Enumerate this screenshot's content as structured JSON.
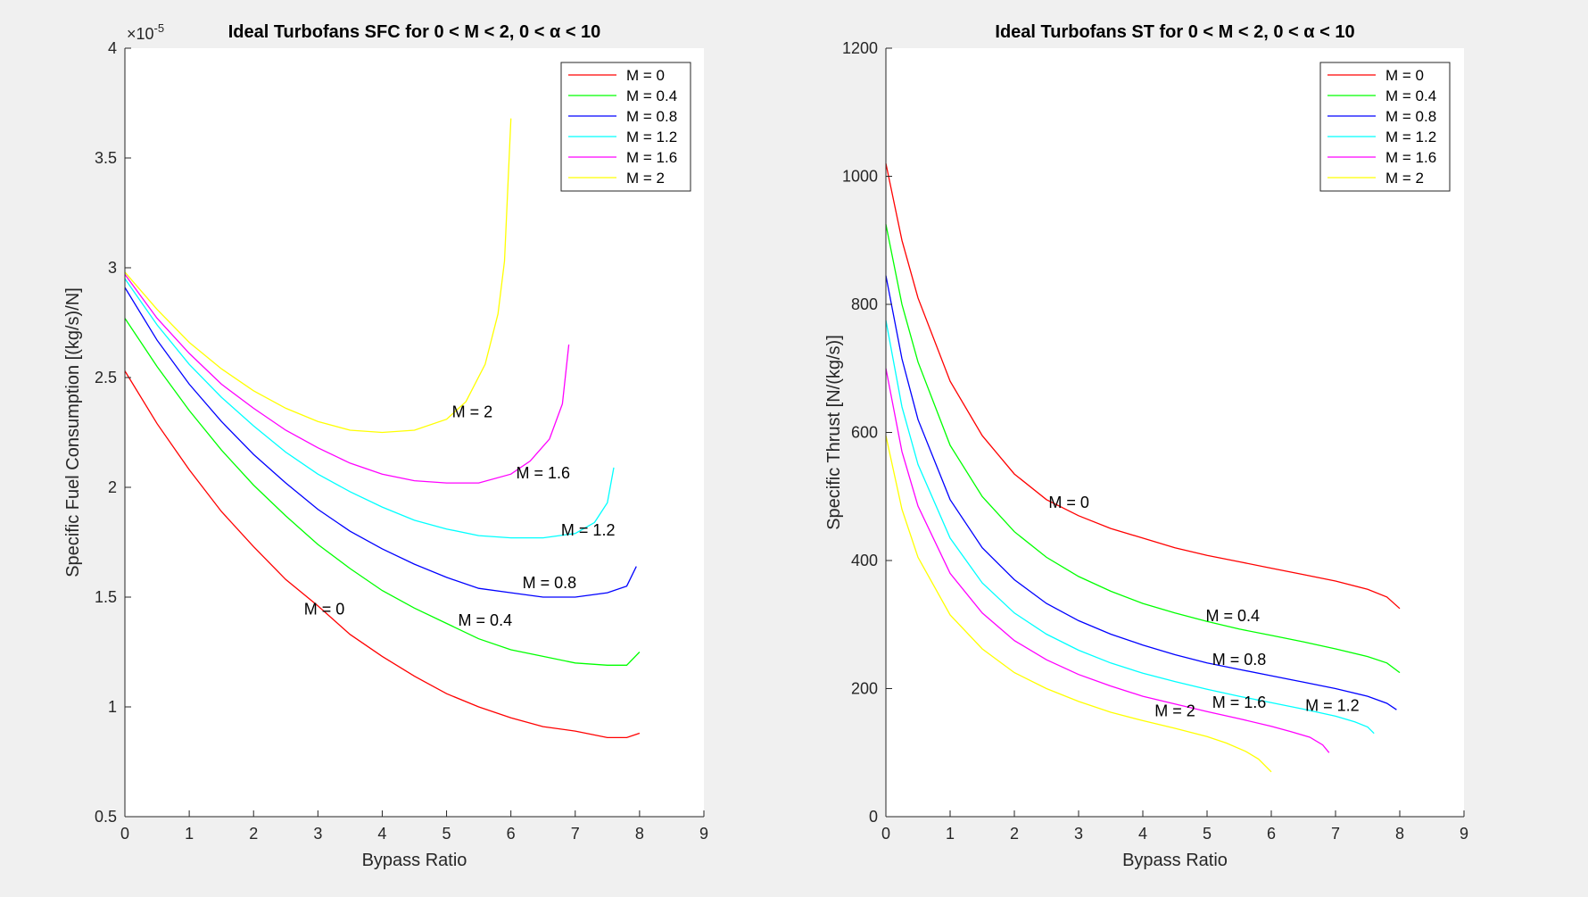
{
  "colors": {
    "M = 0": "#ff0000",
    "M = 0.4": "#00ff00",
    "M = 0.8": "#0000ff",
    "M = 1.2": "#00ffff",
    "M = 1.6": "#ff00ff",
    "M = 2": "#ffff00"
  },
  "chart_data": [
    {
      "type": "line",
      "title": "Ideal Turbofans SFC for 0 < M < 2, 0 < α < 10",
      "xlabel": "Bypass Ratio",
      "ylabel": "Specific Fuel Consumption [(kg/s)/N]",
      "xlim": [
        0,
        9
      ],
      "ylim": [
        0.5,
        4
      ],
      "y_exponent_label": "×10",
      "y_exponent_power": "-5",
      "xticks": [
        "0",
        "1",
        "2",
        "3",
        "4",
        "5",
        "6",
        "7",
        "8",
        "9"
      ],
      "yticks": [
        "0.5",
        "1",
        "1.5",
        "2",
        "2.5",
        "3",
        "3.5",
        "4"
      ],
      "xtick_values": [
        0,
        1,
        2,
        3,
        4,
        5,
        6,
        7,
        8,
        9
      ],
      "ytick_values": [
        0.5,
        1,
        1.5,
        2,
        2.5,
        3,
        3.5,
        4
      ],
      "legend_position": "top-right",
      "grid": false,
      "series": [
        {
          "name": "M = 0",
          "x": [
            0,
            0.5,
            1,
            1.5,
            2,
            2.5,
            3,
            3.5,
            4,
            4.5,
            5,
            5.5,
            6,
            6.5,
            7,
            7.5,
            7.8,
            8
          ],
          "y": [
            2.53,
            2.29,
            2.08,
            1.89,
            1.73,
            1.58,
            1.46,
            1.33,
            1.23,
            1.14,
            1.06,
            1.0,
            0.95,
            0.91,
            0.89,
            0.86,
            0.86,
            0.88
          ]
        },
        {
          "name": "M = 0.4",
          "x": [
            0,
            0.5,
            1,
            1.5,
            2,
            2.5,
            3,
            3.5,
            4,
            4.5,
            5,
            5.5,
            6,
            6.5,
            7,
            7.5,
            7.8,
            8
          ],
          "y": [
            2.77,
            2.55,
            2.35,
            2.17,
            2.01,
            1.87,
            1.74,
            1.63,
            1.53,
            1.45,
            1.38,
            1.31,
            1.26,
            1.23,
            1.2,
            1.19,
            1.19,
            1.25
          ]
        },
        {
          "name": "M = 0.8",
          "x": [
            0,
            0.5,
            1,
            1.5,
            2,
            2.5,
            3,
            3.5,
            4,
            4.5,
            5,
            5.5,
            6,
            6.5,
            7,
            7.5,
            7.8,
            7.95
          ],
          "y": [
            2.91,
            2.67,
            2.47,
            2.3,
            2.15,
            2.02,
            1.9,
            1.8,
            1.72,
            1.65,
            1.59,
            1.54,
            1.52,
            1.5,
            1.5,
            1.52,
            1.55,
            1.64
          ]
        },
        {
          "name": "M = 1.2",
          "x": [
            0,
            0.5,
            1,
            1.5,
            2,
            2.5,
            3,
            3.5,
            4,
            4.5,
            5,
            5.5,
            6,
            6.5,
            7,
            7.3,
            7.5,
            7.6
          ],
          "y": [
            2.95,
            2.74,
            2.56,
            2.41,
            2.28,
            2.16,
            2.06,
            1.98,
            1.91,
            1.85,
            1.81,
            1.78,
            1.77,
            1.77,
            1.79,
            1.84,
            1.93,
            2.09
          ]
        },
        {
          "name": "M = 1.6",
          "x": [
            0,
            0.5,
            1,
            1.5,
            2,
            2.5,
            3,
            3.5,
            4,
            4.5,
            5,
            5.5,
            6,
            6.3,
            6.6,
            6.8,
            6.9
          ],
          "y": [
            2.97,
            2.77,
            2.61,
            2.47,
            2.36,
            2.26,
            2.18,
            2.11,
            2.06,
            2.03,
            2.02,
            2.02,
            2.06,
            2.12,
            2.22,
            2.38,
            2.65
          ]
        },
        {
          "name": "M = 2",
          "x": [
            0,
            0.5,
            1,
            1.5,
            2,
            2.5,
            3,
            3.5,
            4,
            4.5,
            5,
            5.3,
            5.6,
            5.8,
            5.9,
            6.0
          ],
          "y": [
            2.98,
            2.81,
            2.66,
            2.54,
            2.44,
            2.36,
            2.3,
            2.26,
            2.25,
            2.26,
            2.31,
            2.39,
            2.56,
            2.79,
            3.03,
            3.68
          ]
        }
      ],
      "annotations": [
        {
          "text": "M = 0",
          "x": 3.1,
          "y": 1.42
        },
        {
          "text": "M = 0.4",
          "x": 5.6,
          "y": 1.37
        },
        {
          "text": "M = 0.8",
          "x": 6.6,
          "y": 1.54
        },
        {
          "text": "M = 1.2",
          "x": 7.2,
          "y": 1.78
        },
        {
          "text": "M = 1.6",
          "x": 6.5,
          "y": 2.04
        },
        {
          "text": "M = 2",
          "x": 5.4,
          "y": 2.32
        }
      ]
    },
    {
      "type": "line",
      "title": "Ideal Turbofans ST for 0 < M < 2, 0 < α < 10",
      "xlabel": "Bypass Ratio",
      "ylabel": "Specific Thrust [N/(kg/s)]",
      "xlim": [
        0,
        9
      ],
      "ylim": [
        0,
        1200
      ],
      "xticks": [
        "0",
        "1",
        "2",
        "3",
        "4",
        "5",
        "6",
        "7",
        "8",
        "9"
      ],
      "yticks": [
        "0",
        "200",
        "400",
        "600",
        "800",
        "1000",
        "1200"
      ],
      "xtick_values": [
        0,
        1,
        2,
        3,
        4,
        5,
        6,
        7,
        8,
        9
      ],
      "ytick_values": [
        0,
        200,
        400,
        600,
        800,
        1000,
        1200
      ],
      "legend_position": "top-right",
      "grid": false,
      "series": [
        {
          "name": "M = 0",
          "x": [
            0,
            0.25,
            0.5,
            1,
            1.5,
            2,
            2.5,
            3,
            3.5,
            4,
            4.5,
            5,
            5.5,
            6,
            6.5,
            7,
            7.5,
            7.8,
            8
          ],
          "y": [
            1020,
            900,
            810,
            680,
            595,
            535,
            495,
            470,
            450,
            435,
            420,
            408,
            398,
            388,
            378,
            368,
            355,
            343,
            325
          ]
        },
        {
          "name": "M = 0.4",
          "x": [
            0,
            0.25,
            0.5,
            1,
            1.5,
            2,
            2.5,
            3,
            3.5,
            4,
            4.5,
            5,
            5.5,
            6,
            6.5,
            7,
            7.5,
            7.8,
            8
          ],
          "y": [
            925,
            800,
            710,
            580,
            500,
            445,
            405,
            375,
            352,
            333,
            318,
            305,
            293,
            283,
            273,
            262,
            250,
            240,
            225
          ]
        },
        {
          "name": "M = 0.8",
          "x": [
            0,
            0.25,
            0.5,
            1,
            1.5,
            2,
            2.5,
            3,
            3.5,
            4,
            4.5,
            5,
            5.5,
            6,
            6.5,
            7,
            7.5,
            7.8,
            7.95
          ],
          "y": [
            845,
            715,
            620,
            495,
            420,
            370,
            333,
            306,
            285,
            268,
            253,
            240,
            230,
            220,
            210,
            200,
            188,
            177,
            167
          ]
        },
        {
          "name": "M = 1.2",
          "x": [
            0,
            0.25,
            0.5,
            1,
            1.5,
            2,
            2.5,
            3,
            3.5,
            4,
            4.5,
            5,
            5.5,
            6,
            6.5,
            7,
            7.3,
            7.5,
            7.6
          ],
          "y": [
            775,
            640,
            550,
            435,
            365,
            318,
            285,
            260,
            240,
            224,
            211,
            199,
            188,
            178,
            168,
            157,
            148,
            140,
            130
          ]
        },
        {
          "name": "M = 1.6",
          "x": [
            0,
            0.25,
            0.5,
            1,
            1.5,
            2,
            2.5,
            3,
            3.5,
            4,
            4.5,
            5,
            5.5,
            6,
            6.3,
            6.6,
            6.8,
            6.9
          ],
          "y": [
            700,
            570,
            485,
            380,
            318,
            275,
            245,
            222,
            204,
            188,
            176,
            164,
            153,
            141,
            133,
            124,
            112,
            100
          ]
        },
        {
          "name": "M = 2",
          "x": [
            0,
            0.25,
            0.5,
            1,
            1.5,
            2,
            2.5,
            3,
            3.5,
            4,
            4.5,
            5,
            5.3,
            5.6,
            5.8,
            6.0
          ],
          "y": [
            595,
            480,
            405,
            315,
            262,
            225,
            200,
            180,
            163,
            150,
            138,
            125,
            115,
            102,
            90,
            70
          ]
        }
      ],
      "annotations": [
        {
          "text": "M = 0",
          "x": 2.85,
          "y": 482
        },
        {
          "text": "M = 0.4",
          "x": 5.4,
          "y": 305
        },
        {
          "text": "M = 0.8",
          "x": 5.5,
          "y": 237
        },
        {
          "text": "M = 1.2",
          "x": 6.95,
          "y": 165
        },
        {
          "text": "M = 1.6",
          "x": 5.5,
          "y": 170
        },
        {
          "text": "M = 2",
          "x": 4.5,
          "y": 157
        }
      ]
    }
  ]
}
